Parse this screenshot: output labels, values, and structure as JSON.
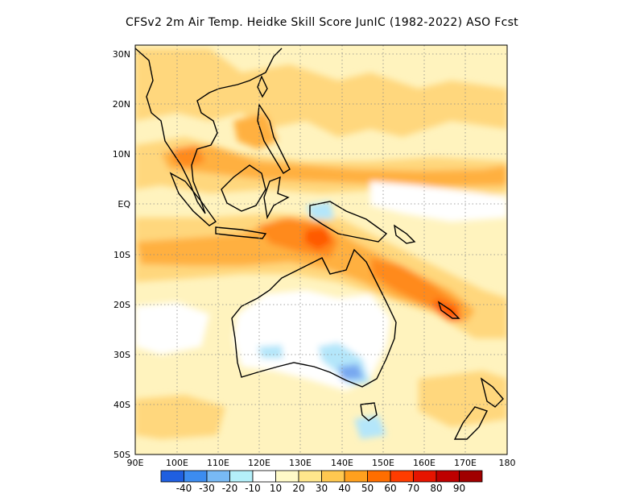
{
  "title": "CFSv2  2m Air Temp. Heidke Skill Score JunIC (1982-2022) ASO Fcst",
  "map": {
    "lon_ticks": [
      "90E",
      "100E",
      "110E",
      "120E",
      "130E",
      "140E",
      "150E",
      "160E",
      "170E",
      "180"
    ],
    "lat_ticks": [
      "30N",
      "20N",
      "10N",
      "EQ",
      "10S",
      "20S",
      "30S",
      "40S",
      "50S"
    ],
    "lon_range": [
      90,
      180
    ],
    "lat_range": [
      -50,
      32
    ],
    "grid": "dotted"
  },
  "colorbar": {
    "labels": [
      "-40",
      "-30",
      "-20",
      "-10",
      "10",
      "20",
      "30",
      "40",
      "50",
      "60",
      "70",
      "80",
      "90"
    ],
    "colors": [
      "#1f5fe0",
      "#3c8cf0",
      "#78b9f5",
      "#b4f0fa",
      "#ffffff",
      "#fffac8",
      "#ffe68c",
      "#ffc850",
      "#ffa01e",
      "#ff6e00",
      "#ff3c00",
      "#e61400",
      "#be0000",
      "#a00000"
    ]
  },
  "field_colors": {
    "land_outline": "#000000",
    "low_skill": "#fff3be",
    "moderate_skill": "#ffd77d",
    "high_skill": "#ffb040",
    "very_high_skill": "#ff8a1e",
    "extreme_skill": "#ff5a00",
    "negative_skill": "#b4e6fa",
    "strong_negative": "#78a8f0"
  }
}
